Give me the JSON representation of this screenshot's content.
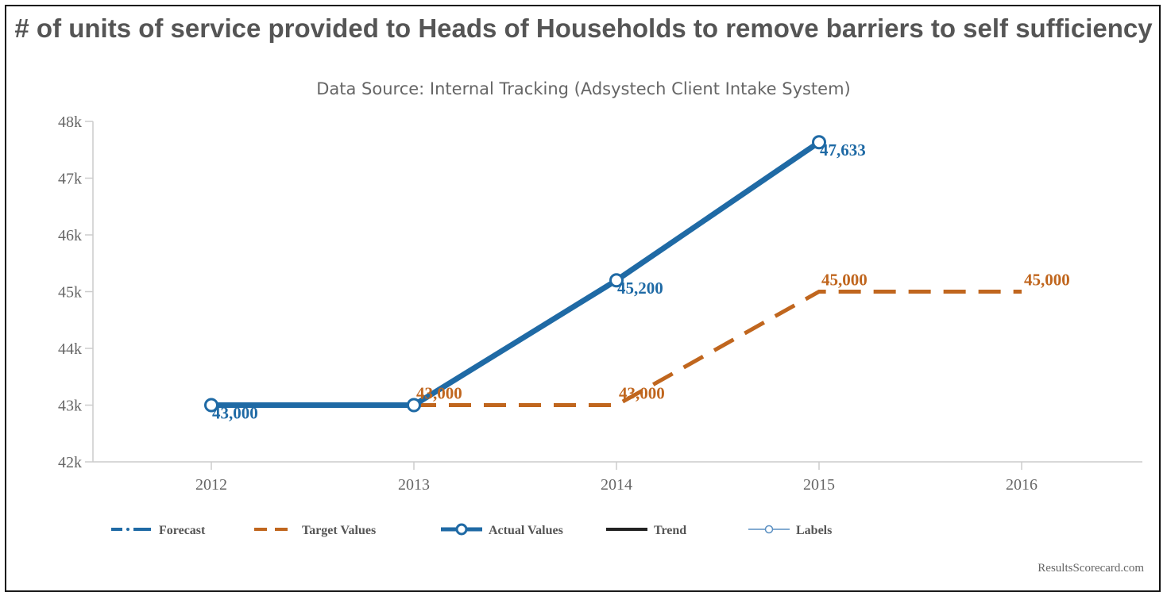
{
  "chart_data": {
    "type": "line",
    "title": "# of units of service provided to Heads of Households to remove barriers to self sufficiency",
    "subtitle": "Data Source: Internal Tracking (Adsystech Client Intake System)",
    "x": [
      "2012",
      "2013",
      "2014",
      "2015",
      "2016"
    ],
    "ylim": [
      42000,
      48000
    ],
    "yticks": [
      42000,
      43000,
      44000,
      45000,
      46000,
      47000,
      48000
    ],
    "ytick_labels": [
      "42k",
      "43k",
      "44k",
      "45k",
      "46k",
      "47k",
      "48k"
    ],
    "grid": false,
    "legend_position": "bottom",
    "series": [
      {
        "name": "Actual Values",
        "color": "#1f6aa5",
        "style": "solid-marker",
        "values": [
          43000,
          43000,
          45200,
          47633,
          null
        ],
        "labels": [
          "43,000",
          null,
          "45,200",
          "47,633",
          null
        ]
      },
      {
        "name": "Target Values",
        "color": "#c0661e",
        "style": "dashed",
        "values": [
          null,
          43000,
          43000,
          45000,
          45000
        ],
        "labels": [
          null,
          "43,000",
          "43,000",
          "45,000",
          "45,000"
        ]
      }
    ],
    "legend": [
      {
        "name": "Forecast",
        "color": "#1f6aa5",
        "style": "dashdot"
      },
      {
        "name": "Target Values",
        "color": "#c0661e",
        "style": "dashed"
      },
      {
        "name": "Actual Values",
        "color": "#1f6aa5",
        "style": "solid-marker"
      },
      {
        "name": "Trend",
        "color": "#222222",
        "style": "solid"
      },
      {
        "name": "Labels",
        "color": "#5a8fc2",
        "style": "thin-marker"
      }
    ],
    "credit": "ResultsScorecard.com"
  }
}
